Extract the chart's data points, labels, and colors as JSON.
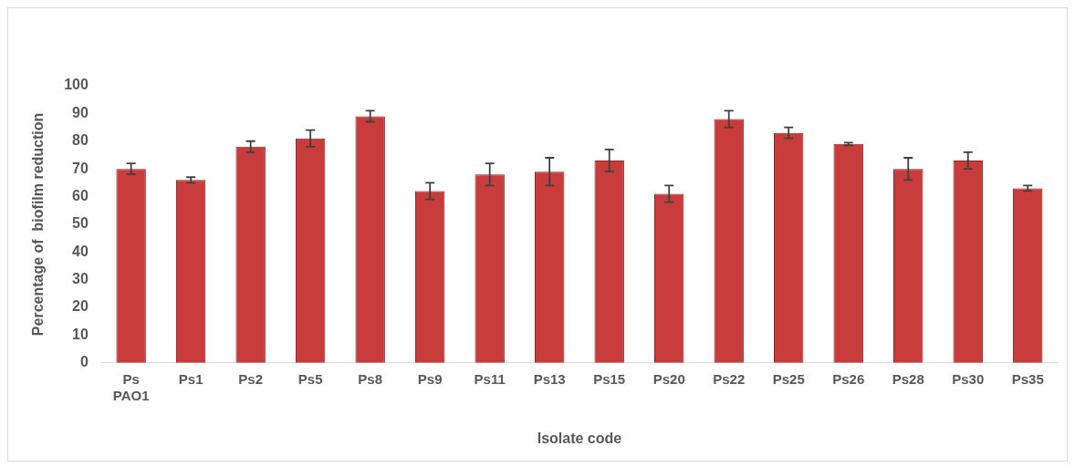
{
  "chart_data": {
    "type": "bar",
    "xlabel": "Isolate code",
    "ylabel": "Percentage of  biofilm reduction",
    "categories": [
      "Ps PAO1",
      "Ps1",
      "Ps2",
      "Ps5",
      "Ps8",
      "Ps9",
      "Ps11",
      "Ps13",
      "Ps15",
      "Ps20",
      "Ps22",
      "Ps25",
      "Ps26",
      "Ps28",
      "Ps30",
      "Ps35"
    ],
    "values": [
      70,
      66,
      78,
      81,
      89,
      62,
      68,
      69,
      73,
      61,
      88,
      83,
      79,
      70,
      73,
      63
    ],
    "errors": [
      2,
      1,
      2,
      3,
      2,
      3,
      4,
      5,
      4,
      3,
      3,
      2,
      0.5,
      4,
      3,
      1
    ],
    "color": "#c83c3c",
    "ylim": [
      0,
      100
    ],
    "yticks": [
      0,
      10,
      20,
      30,
      40,
      50,
      60,
      70,
      80,
      90,
      100
    ],
    "grid": false,
    "legend": false
  }
}
